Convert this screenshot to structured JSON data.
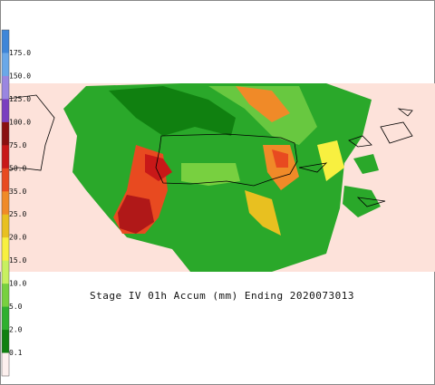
{
  "title": "Stage IV 01h Accum (mm) Ending 2020073013",
  "legend": {
    "labels": [
      "175.0",
      "150.0",
      "125.0",
      "100.0",
      "75.0",
      "50.0",
      "35.0",
      "25.0",
      "20.0",
      "15.0",
      "10.0",
      "5.0",
      "2.0",
      "0.1"
    ],
    "colors": [
      "#3f86d8",
      "#6aa8e8",
      "#9a86e0",
      "#7a3fbf",
      "#8a1010",
      "#c81818",
      "#e84a20",
      "#f08a28",
      "#e8c020",
      "#f8f040",
      "#c8f060",
      "#78d040",
      "#30b030",
      "#108010",
      "#fdf0ee"
    ]
  }
}
